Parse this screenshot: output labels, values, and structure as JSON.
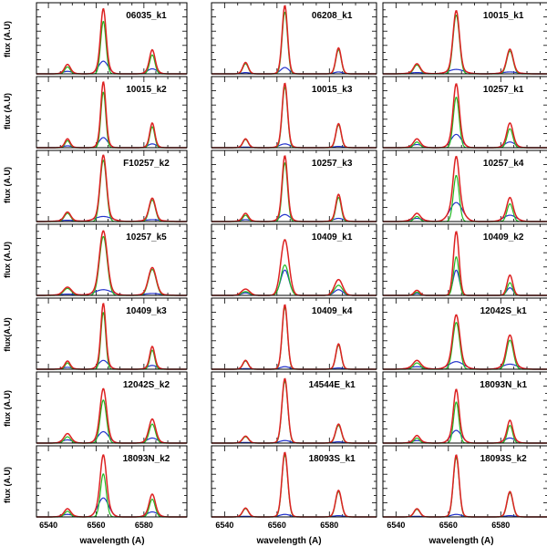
{
  "chart_data": {
    "type": "line",
    "title": "",
    "xlabel": "wavelength (A)",
    "ylabel_rows": [
      "flux (A.U)",
      "flux (A.U)",
      "flux (A.U)",
      "flux (A.U)",
      "flux(A.U)",
      "flux (A.U)",
      "flux (A.U)"
    ],
    "x_range": [
      6535,
      6598
    ],
    "x_ticks": [
      6540,
      6560,
      6580
    ],
    "y_range": [
      0,
      1.08
    ],
    "lines_angstrom": {
      "NII_6548": 6548,
      "H_alpha": 6563,
      "NII_6583": 6583.5
    },
    "colors": {
      "total_fit": "#dd2222",
      "narrow_component": "#22bb22",
      "broad_component": "#2233cc",
      "data": "#000000"
    },
    "panels": [
      {
        "label": "06035_k1",
        "sigma_n": 1.1,
        "sigma_b": 2.0,
        "narrow": [
          0.11,
          0.83,
          0.3
        ],
        "broad": [
          0.04,
          0.2,
          0.08
        ]
      },
      {
        "label": "06208_k1",
        "sigma_n": 1.0,
        "sigma_b": 1.6,
        "narrow": [
          0.16,
          0.98,
          0.38
        ],
        "broad": [
          0.02,
          0.1,
          0.03
        ]
      },
      {
        "label": "10015_k1",
        "sigma_n": 1.2,
        "sigma_b": 3.0,
        "narrow": [
          0.14,
          0.93,
          0.36
        ],
        "broad": [
          0.02,
          0.07,
          0.03
        ]
      },
      {
        "label": "10015_k2",
        "sigma_n": 1.0,
        "sigma_b": 1.8,
        "narrow": [
          0.11,
          0.88,
          0.33
        ],
        "broad": [
          0.03,
          0.16,
          0.06
        ]
      },
      {
        "label": "10015_k3",
        "sigma_n": 1.0,
        "sigma_b": 2.0,
        "narrow": [
          0.13,
          0.96,
          0.36
        ],
        "broad": [
          0.01,
          0.06,
          0.02
        ]
      },
      {
        "label": "10257_k1",
        "sigma_n": 1.1,
        "sigma_b": 2.0,
        "narrow": [
          0.09,
          0.8,
          0.3
        ],
        "broad": [
          0.05,
          0.21,
          0.09
        ]
      },
      {
        "label": "F10257_k2",
        "sigma_n": 1.3,
        "sigma_b": 3.5,
        "narrow": [
          0.13,
          0.97,
          0.34
        ],
        "broad": [
          0.02,
          0.08,
          0.03
        ]
      },
      {
        "label": "10257_k3",
        "sigma_n": 1.0,
        "sigma_b": 2.0,
        "narrow": [
          0.1,
          0.93,
          0.38
        ],
        "broad": [
          0.03,
          0.11,
          0.05
        ]
      },
      {
        "label": "10257_k4",
        "sigma_n": 1.1,
        "sigma_b": 2.4,
        "narrow": [
          0.08,
          0.73,
          0.28
        ],
        "broad": [
          0.05,
          0.3,
          0.1
        ]
      },
      {
        "label": "10257_k5",
        "sigma_n": 1.6,
        "sigma_b": 3.5,
        "narrow": [
          0.11,
          0.93,
          0.41
        ],
        "broad": [
          0.02,
          0.09,
          0.03
        ]
      },
      {
        "label": "10409_k1",
        "sigma_n": 1.5,
        "sigma_b": 1.6,
        "narrow": [
          0.06,
          0.48,
          0.16
        ],
        "broad": [
          0.04,
          0.4,
          0.09
        ]
      },
      {
        "label": "10409_k2",
        "sigma_n": 1.0,
        "sigma_b": 1.2,
        "narrow": [
          0.05,
          0.61,
          0.2
        ],
        "broad": [
          0.03,
          0.4,
          0.12
        ]
      },
      {
        "label": "10409_k3",
        "sigma_n": 1.0,
        "sigma_b": 2.0,
        "narrow": [
          0.1,
          0.9,
          0.3
        ],
        "broad": [
          0.03,
          0.14,
          0.06
        ]
      },
      {
        "label": "10409_k4",
        "sigma_n": 1.0,
        "sigma_b": 1.8,
        "narrow": [
          0.13,
          0.98,
          0.38
        ],
        "broad": [
          0.01,
          0.04,
          0.02
        ]
      },
      {
        "label": "12042S_k1",
        "sigma_n": 1.3,
        "sigma_b": 2.8,
        "narrow": [
          0.1,
          0.74,
          0.46
        ],
        "broad": [
          0.04,
          0.12,
          0.08
        ]
      },
      {
        "label": "12042S_k2",
        "sigma_n": 1.3,
        "sigma_b": 2.2,
        "narrow": [
          0.1,
          0.68,
          0.3
        ],
        "broad": [
          0.05,
          0.18,
          0.08
        ]
      },
      {
        "label": "14544E_k1",
        "sigma_n": 1.1,
        "sigma_b": 2.0,
        "narrow": [
          0.1,
          0.98,
          0.28
        ],
        "broad": [
          0.01,
          0.04,
          0.02
        ]
      },
      {
        "label": "18093N_k1",
        "sigma_n": 1.0,
        "sigma_b": 2.0,
        "narrow": [
          0.08,
          0.65,
          0.28
        ],
        "broad": [
          0.04,
          0.2,
          0.08
        ]
      },
      {
        "label": "18093N_k2",
        "sigma_n": 1.2,
        "sigma_b": 2.2,
        "narrow": [
          0.09,
          0.68,
          0.28
        ],
        "broad": [
          0.04,
          0.3,
          0.08
        ]
      },
      {
        "label": "18093S_k1",
        "sigma_n": 1.1,
        "sigma_b": 2.0,
        "narrow": [
          0.13,
          0.98,
          0.4
        ],
        "broad": [
          0.01,
          0.04,
          0.02
        ]
      },
      {
        "label": "18093S_k2",
        "sigma_n": 1.1,
        "sigma_b": 2.0,
        "narrow": [
          0.12,
          0.94,
          0.38
        ],
        "broad": [
          0.01,
          0.04,
          0.02
        ]
      }
    ]
  }
}
